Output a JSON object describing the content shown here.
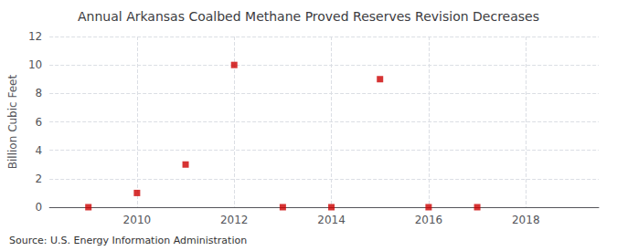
{
  "chart_data": {
    "type": "scatter",
    "title": "Annual Arkansas Coalbed Methane Proved Reserves Revision Decreases",
    "ylabel": "Billion Cubic Feet",
    "annotations": [
      "Source: U.S. Energy Information Administration"
    ],
    "x": [
      2009,
      2010,
      2011,
      2012,
      2013,
      2014,
      2015,
      2016,
      2017
    ],
    "values": [
      0.0,
      1.0,
      3.0,
      10.0,
      0.0,
      0.0,
      9.0,
      0.0,
      0.0
    ],
    "color": "#cc0000",
    "marker": "square",
    "xlim": [
      2008.2,
      2019.5
    ],
    "xticks": [
      2010,
      2012,
      2014,
      2016,
      2018
    ],
    "ylim": [
      0,
      12
    ],
    "yticks": [
      0,
      2,
      4,
      6,
      8,
      10,
      12
    ],
    "grid": true
  }
}
